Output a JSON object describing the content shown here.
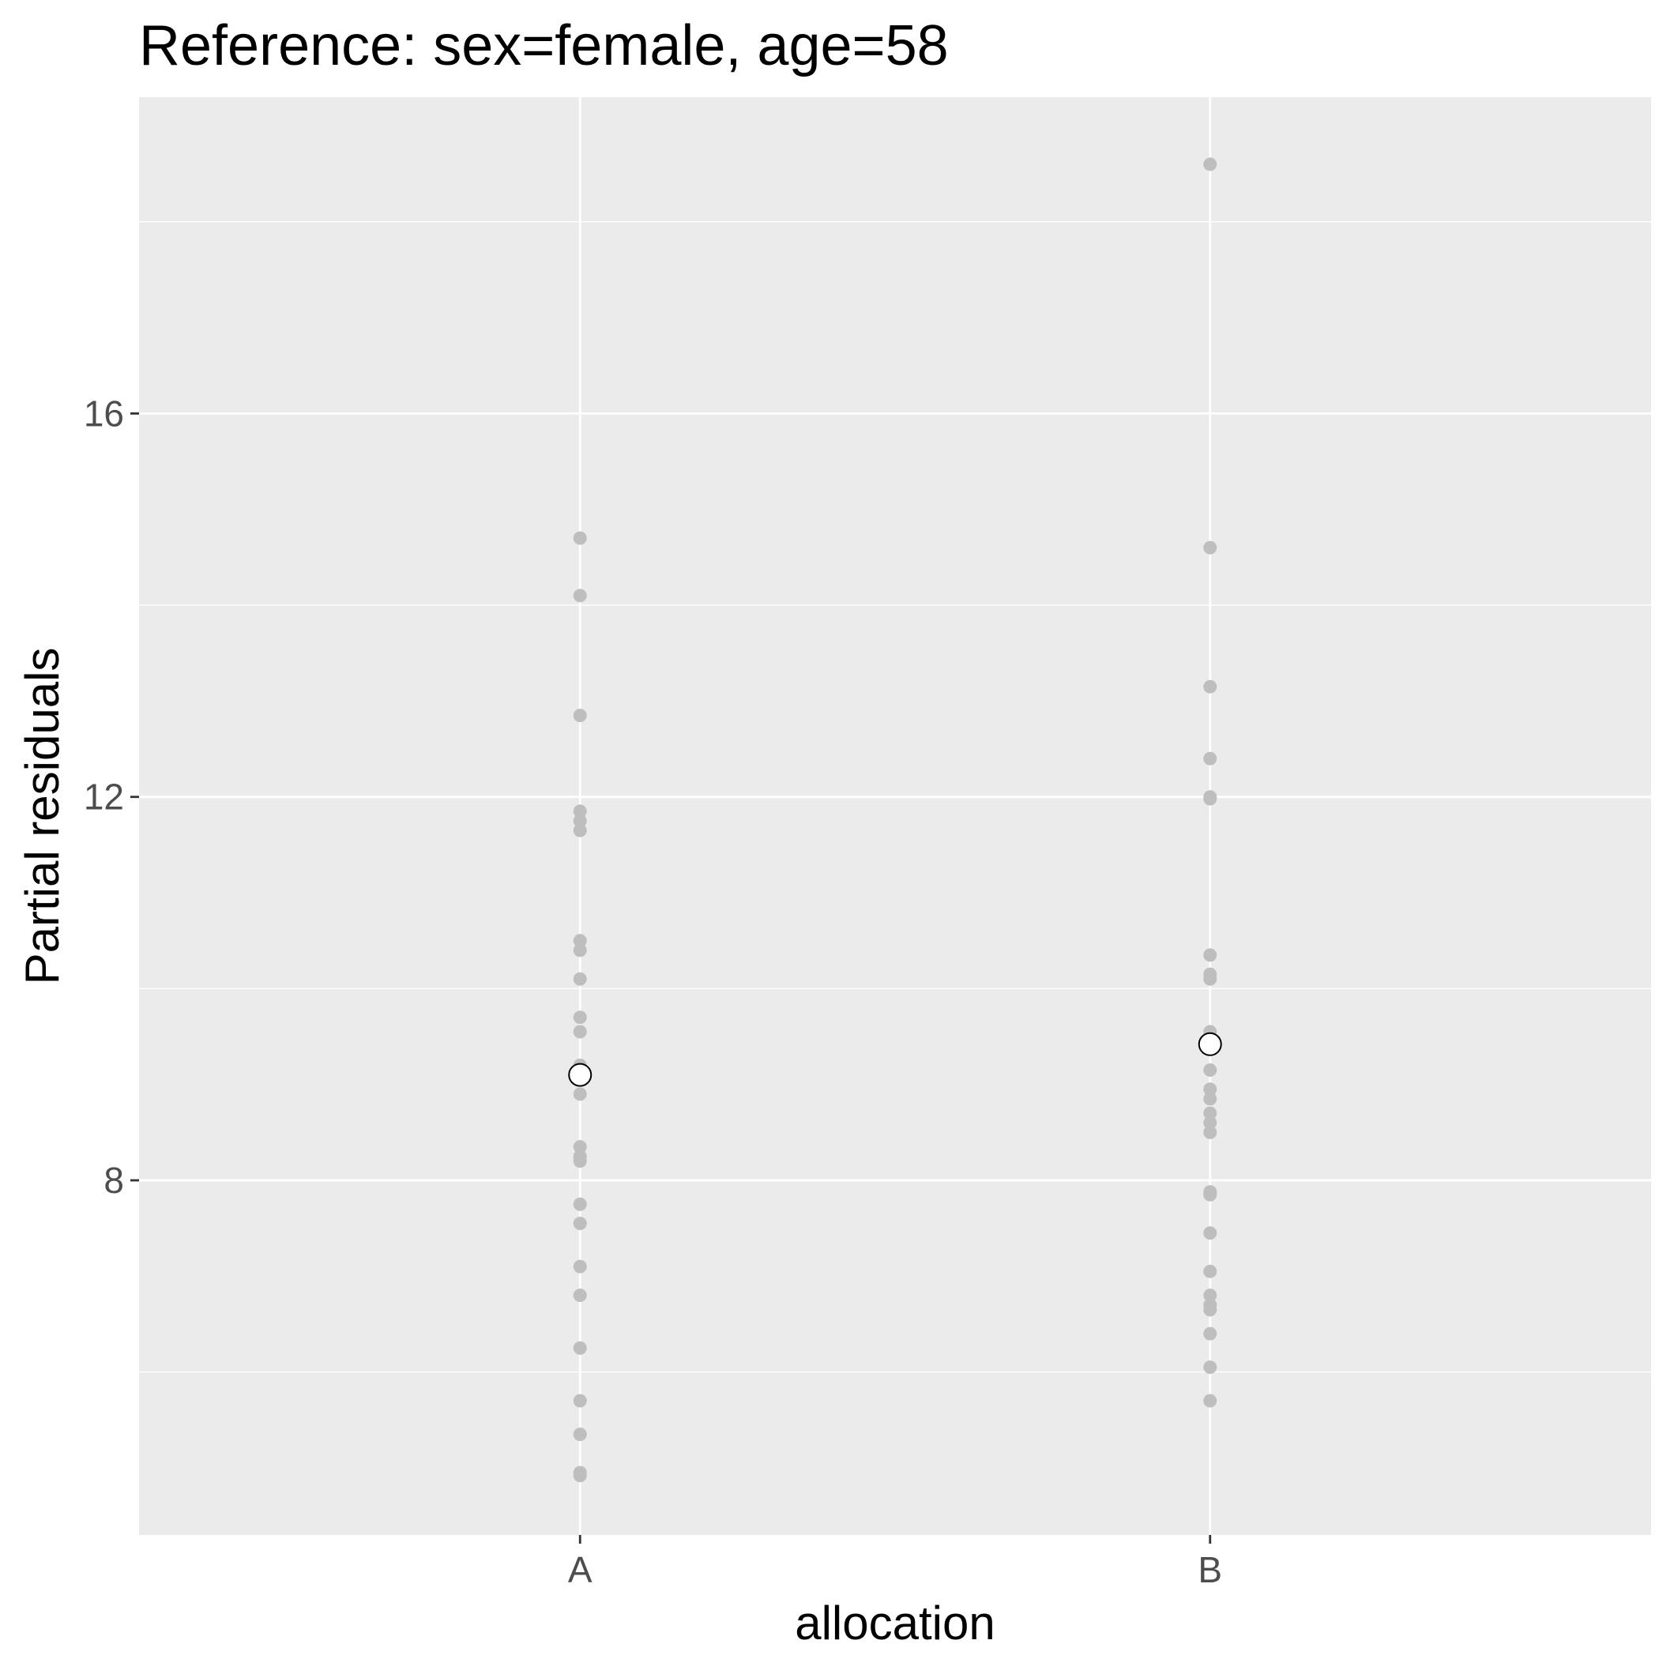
{
  "chart_data": {
    "type": "scatter",
    "title": "Reference: sex=female, age=58",
    "xlabel": "allocation",
    "ylabel": "Partial residuals",
    "categories": [
      "A",
      "B"
    ],
    "y_ticks": [
      8,
      12,
      16
    ],
    "y_minor_ticks": [
      6,
      10,
      14,
      18
    ],
    "ylim": [
      4.3,
      19.3
    ],
    "grid": true,
    "colors": {
      "panel": "#ebebeb",
      "grid": "#ffffff",
      "points": "#bebebe",
      "estimate_fill": "#ffffff",
      "estimate_stroke": "#000000",
      "tick_label": "#4d4d4d",
      "tick_mark": "#333333"
    },
    "series": [
      {
        "category": "A",
        "role": "residuals",
        "values": [
          14.7,
          14.1,
          12.85,
          11.85,
          11.75,
          11.65,
          10.5,
          10.4,
          10.1,
          9.7,
          9.55,
          9.2,
          9.1,
          8.9,
          8.35,
          8.25,
          8.2,
          7.75,
          7.55,
          7.1,
          6.8,
          6.25,
          5.7,
          5.35,
          4.95,
          4.92
        ]
      },
      {
        "category": "B",
        "role": "residuals",
        "values": [
          18.6,
          14.6,
          13.15,
          12.4,
          12.0,
          11.98,
          10.35,
          10.15,
          10.1,
          9.55,
          9.15,
          8.95,
          8.85,
          8.7,
          8.6,
          8.5,
          7.88,
          7.85,
          7.45,
          7.05,
          6.8,
          6.7,
          6.65,
          6.4,
          6.05,
          5.7
        ]
      },
      {
        "role": "estimate",
        "categories": [
          "A",
          "B"
        ],
        "values": [
          9.1,
          9.42
        ]
      }
    ]
  }
}
